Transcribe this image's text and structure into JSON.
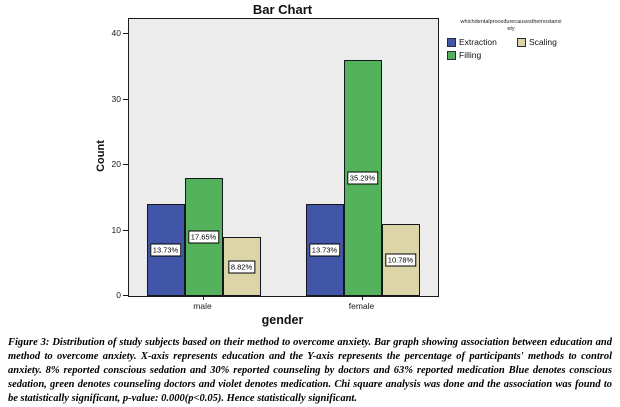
{
  "chart_data": {
    "type": "bar",
    "title": "Bar Chart",
    "xlabel": "gender",
    "ylabel": "Count",
    "categories": [
      "male",
      "female"
    ],
    "series": [
      {
        "name": "Extraction",
        "color": "#4156a6",
        "values": [
          14,
          14
        ],
        "percent_labels": [
          "13.73%",
          "13.73%"
        ]
      },
      {
        "name": "Filling",
        "color": "#53b25b",
        "values": [
          18,
          36
        ],
        "percent_labels": [
          "17.65%",
          "35.29%"
        ]
      },
      {
        "name": "Scaling",
        "color": "#dbd5a8",
        "values": [
          9,
          11
        ],
        "percent_labels": [
          "8.82%",
          "10.78%"
        ]
      }
    ],
    "yticks": [
      0,
      10,
      20,
      30,
      40
    ],
    "ylim": [
      0,
      42.3
    ],
    "grid": false,
    "plot_background": "#ececec",
    "legend_position": "outside-top-right",
    "legend_title": "whichdentalprocedurecausesthemostanxiety"
  },
  "legend": {
    "title_lines": [
      "whichdentalprocedurecausesthemostanxi",
      "ety"
    ],
    "entries": [
      {
        "label": "Extraction",
        "color": "#4156a6"
      },
      {
        "label": "Scaling",
        "color": "#dbd5a8"
      },
      {
        "label": "Filling",
        "color": "#53b25b"
      }
    ]
  },
  "caption": {
    "label": "Figure 3:",
    "text": "Distribution of study subjects based on their method to overcome anxiety. Bar graph showing association between education and method to overcome anxiety. X-axis represents education and the Y-axis represents the percentage of participants' methods to control anxiety. 8% reported conscious sedation and 30% reported counseling by doctors and 63% reported medication  Blue denotes conscious sedation, green denotes counseling doctors and violet denotes medication. Chi square analysis was done and the association was found to be statistically significant, p-value: 0.000(p<0.05). Hence statistically significant."
  }
}
